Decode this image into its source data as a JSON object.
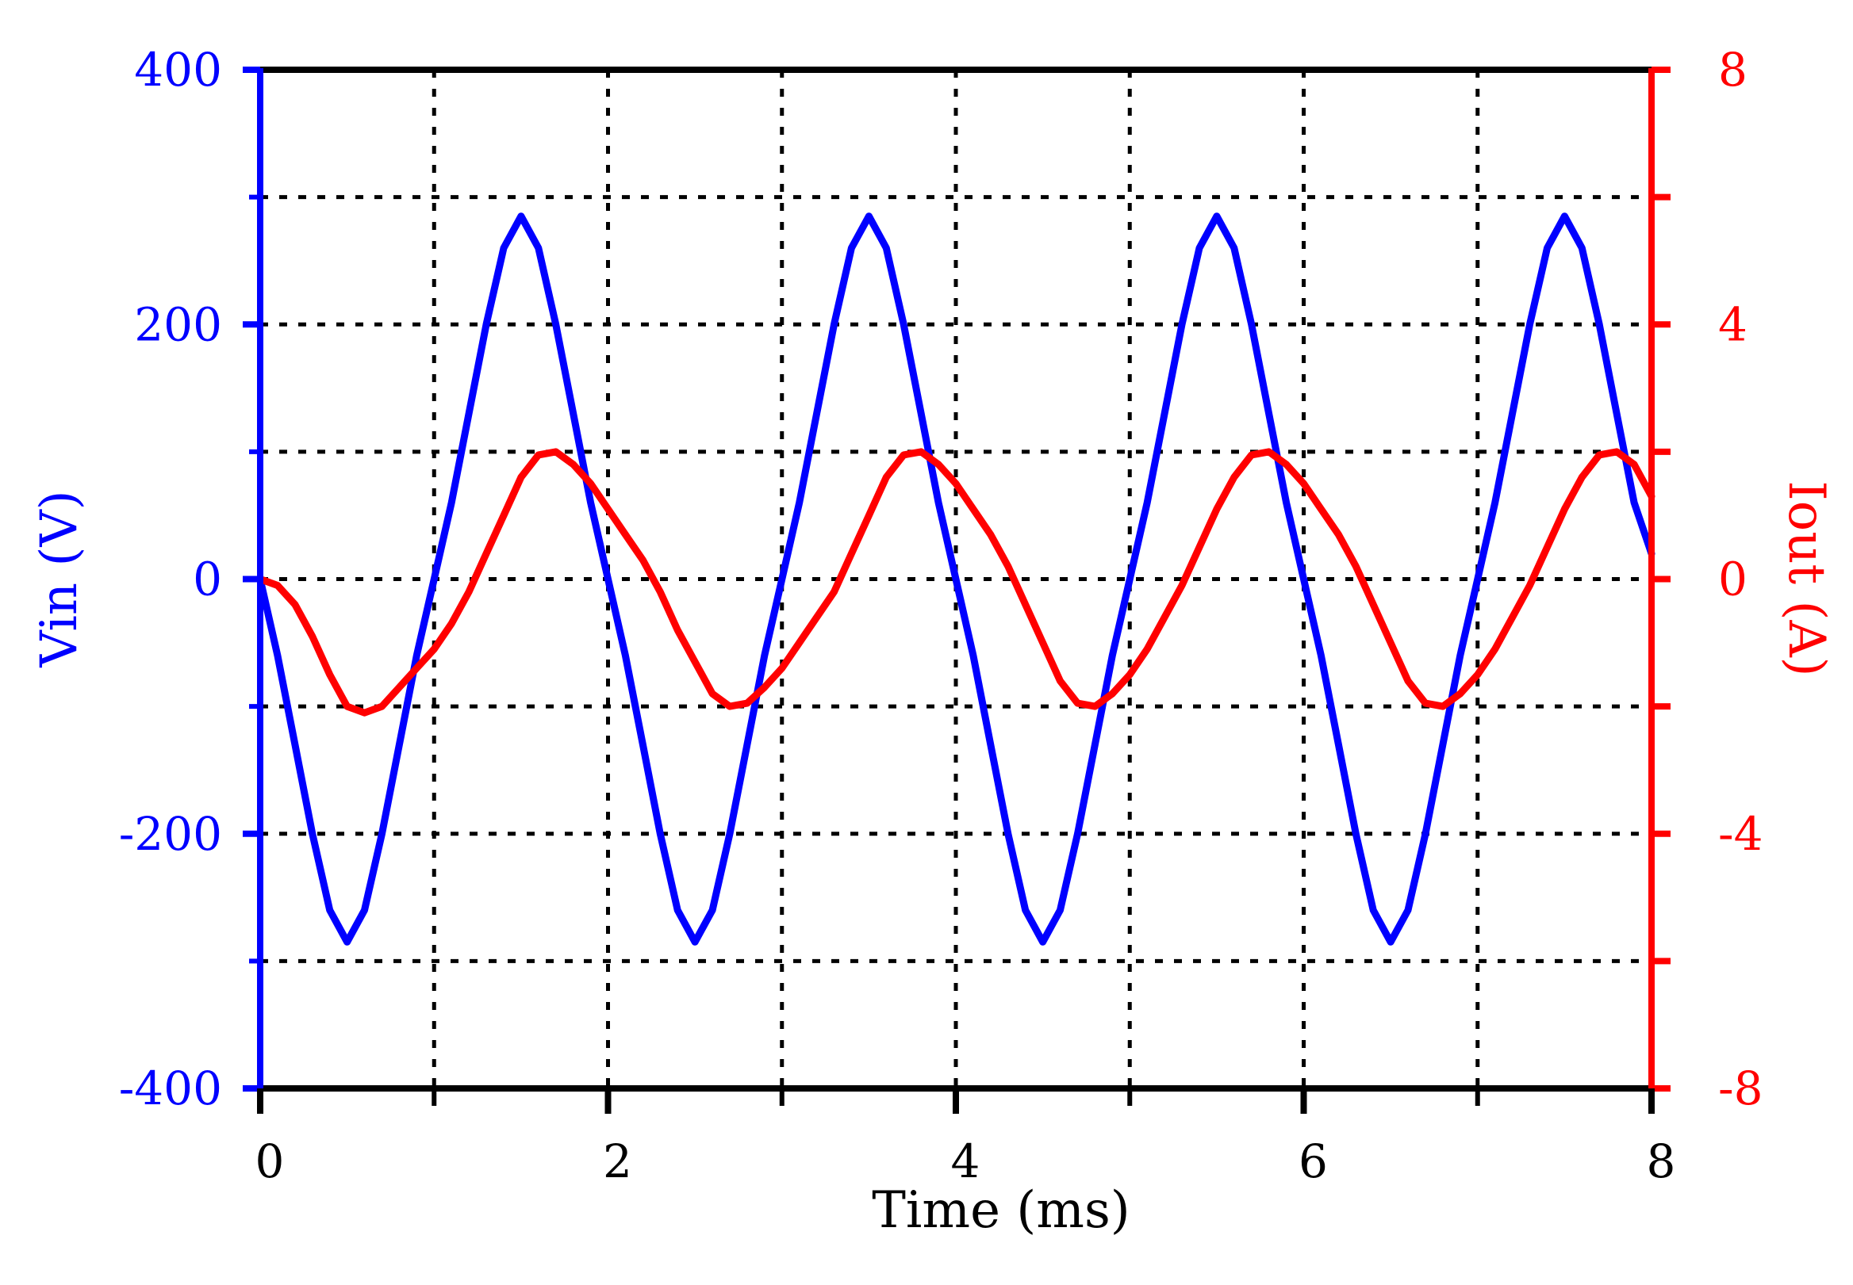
{
  "chart_data": {
    "type": "line",
    "title": "",
    "xlabel": "Time (ms)",
    "xlim": [
      0,
      8
    ],
    "x_ticks": [
      0,
      2,
      4,
      6,
      8
    ],
    "x_tick_labels": [
      "0",
      "2",
      "4",
      "6",
      "8"
    ],
    "x_minor_ticks": [
      1,
      3,
      5,
      7
    ],
    "grid": true,
    "axes": {
      "left": {
        "label": "Vin (V)",
        "color": "#0000ff",
        "ylim": [
          -400,
          400
        ],
        "ticks": [
          -400,
          -200,
          0,
          200,
          400
        ],
        "tick_labels": [
          "-400",
          "-200",
          "0",
          "200",
          "400"
        ],
        "minor_ticks": [
          -300,
          -100,
          100,
          300
        ]
      },
      "right": {
        "label": "Iout (A)",
        "color": "#ff0000",
        "ylim": [
          -8,
          8
        ],
        "ticks": [
          -8,
          -4,
          0,
          4,
          8
        ],
        "tick_labels": [
          "-8",
          "-4",
          "0",
          "4",
          "8"
        ],
        "minor_ticks": [
          -6,
          -2,
          2,
          6
        ]
      }
    },
    "series": [
      {
        "axis": "left",
        "color": "#0000ff",
        "x": [
          0,
          0.1,
          0.2,
          0.3,
          0.4,
          0.5,
          0.6,
          0.7,
          0.8,
          0.9,
          1.0,
          1.1,
          1.2,
          1.3,
          1.4,
          1.5,
          1.6,
          1.7,
          1.8,
          1.9,
          2.0,
          2.1,
          2.2,
          2.3,
          2.4,
          2.5,
          2.6,
          2.7,
          2.8,
          2.9,
          3.0,
          3.1,
          3.2,
          3.3,
          3.4,
          3.5,
          3.6,
          3.7,
          3.8,
          3.9,
          4.0,
          4.1,
          4.2,
          4.3,
          4.4,
          4.5,
          4.6,
          4.7,
          4.8,
          4.9,
          5.0,
          5.1,
          5.2,
          5.3,
          5.4,
          5.5,
          5.6,
          5.7,
          5.8,
          5.9,
          6.0,
          6.1,
          6.2,
          6.3,
          6.4,
          6.5,
          6.6,
          6.7,
          6.8,
          6.9,
          7.0,
          7.1,
          7.2,
          7.3,
          7.4,
          7.5,
          7.6,
          7.7,
          7.8,
          7.9,
          8.0
        ],
        "y": [
          0,
          -60,
          -130,
          -200,
          -260,
          -285,
          -260,
          -200,
          -130,
          -60,
          0,
          60,
          130,
          200,
          260,
          285,
          260,
          200,
          130,
          60,
          0,
          -60,
          -130,
          -200,
          -260,
          -285,
          -260,
          -200,
          -130,
          -60,
          0,
          60,
          130,
          200,
          260,
          285,
          260,
          200,
          130,
          60,
          0,
          -60,
          -130,
          -200,
          -260,
          -285,
          -260,
          -200,
          -130,
          -60,
          0,
          60,
          130,
          200,
          260,
          285,
          260,
          200,
          130,
          60,
          0,
          -60,
          -130,
          -200,
          -260,
          -285,
          -260,
          -200,
          -130,
          -60,
          0,
          60,
          130,
          200,
          260,
          285,
          260,
          200,
          130,
          60,
          20
        ]
      },
      {
        "axis": "right",
        "color": "#ff0000",
        "x": [
          0,
          0.1,
          0.2,
          0.3,
          0.4,
          0.5,
          0.6,
          0.7,
          0.8,
          0.9,
          1.0,
          1.1,
          1.2,
          1.3,
          1.4,
          1.5,
          1.6,
          1.7,
          1.8,
          1.9,
          2.0,
          2.1,
          2.2,
          2.3,
          2.4,
          2.5,
          2.6,
          2.7,
          2.8,
          2.9,
          3.0,
          3.1,
          3.2,
          3.3,
          3.4,
          3.5,
          3.6,
          3.7,
          3.8,
          3.9,
          4.0,
          4.1,
          4.2,
          4.3,
          4.4,
          4.5,
          4.6,
          4.7,
          4.8,
          4.9,
          5.0,
          5.1,
          5.2,
          5.3,
          5.4,
          5.5,
          5.6,
          5.7,
          5.8,
          5.9,
          6.0,
          6.1,
          6.2,
          6.3,
          6.4,
          6.5,
          6.6,
          6.7,
          6.8,
          6.9,
          7.0,
          7.1,
          7.2,
          7.3,
          7.4,
          7.5,
          7.6,
          7.7,
          7.8,
          7.9,
          8.0
        ],
        "y": [
          0,
          -0.1,
          -0.4,
          -0.9,
          -1.5,
          -2.0,
          -2.1,
          -2.0,
          -1.7,
          -1.4,
          -1.1,
          -0.7,
          -0.2,
          0.4,
          1.0,
          1.6,
          1.95,
          2.0,
          1.8,
          1.5,
          1.1,
          0.7,
          0.3,
          -0.2,
          -0.8,
          -1.3,
          -1.8,
          -2.0,
          -1.95,
          -1.7,
          -1.4,
          -1.0,
          -0.6,
          -0.2,
          0.4,
          1.0,
          1.6,
          1.95,
          2.0,
          1.8,
          1.5,
          1.1,
          0.7,
          0.2,
          -0.4,
          -1.0,
          -1.6,
          -1.95,
          -2.0,
          -1.8,
          -1.5,
          -1.1,
          -0.6,
          -0.1,
          0.5,
          1.1,
          1.6,
          1.95,
          2.0,
          1.8,
          1.5,
          1.1,
          0.7,
          0.2,
          -0.4,
          -1.0,
          -1.6,
          -1.95,
          -2.0,
          -1.8,
          -1.5,
          -1.1,
          -0.6,
          -0.1,
          0.5,
          1.1,
          1.6,
          1.95,
          2.0,
          1.8,
          1.3
        ]
      }
    ]
  }
}
